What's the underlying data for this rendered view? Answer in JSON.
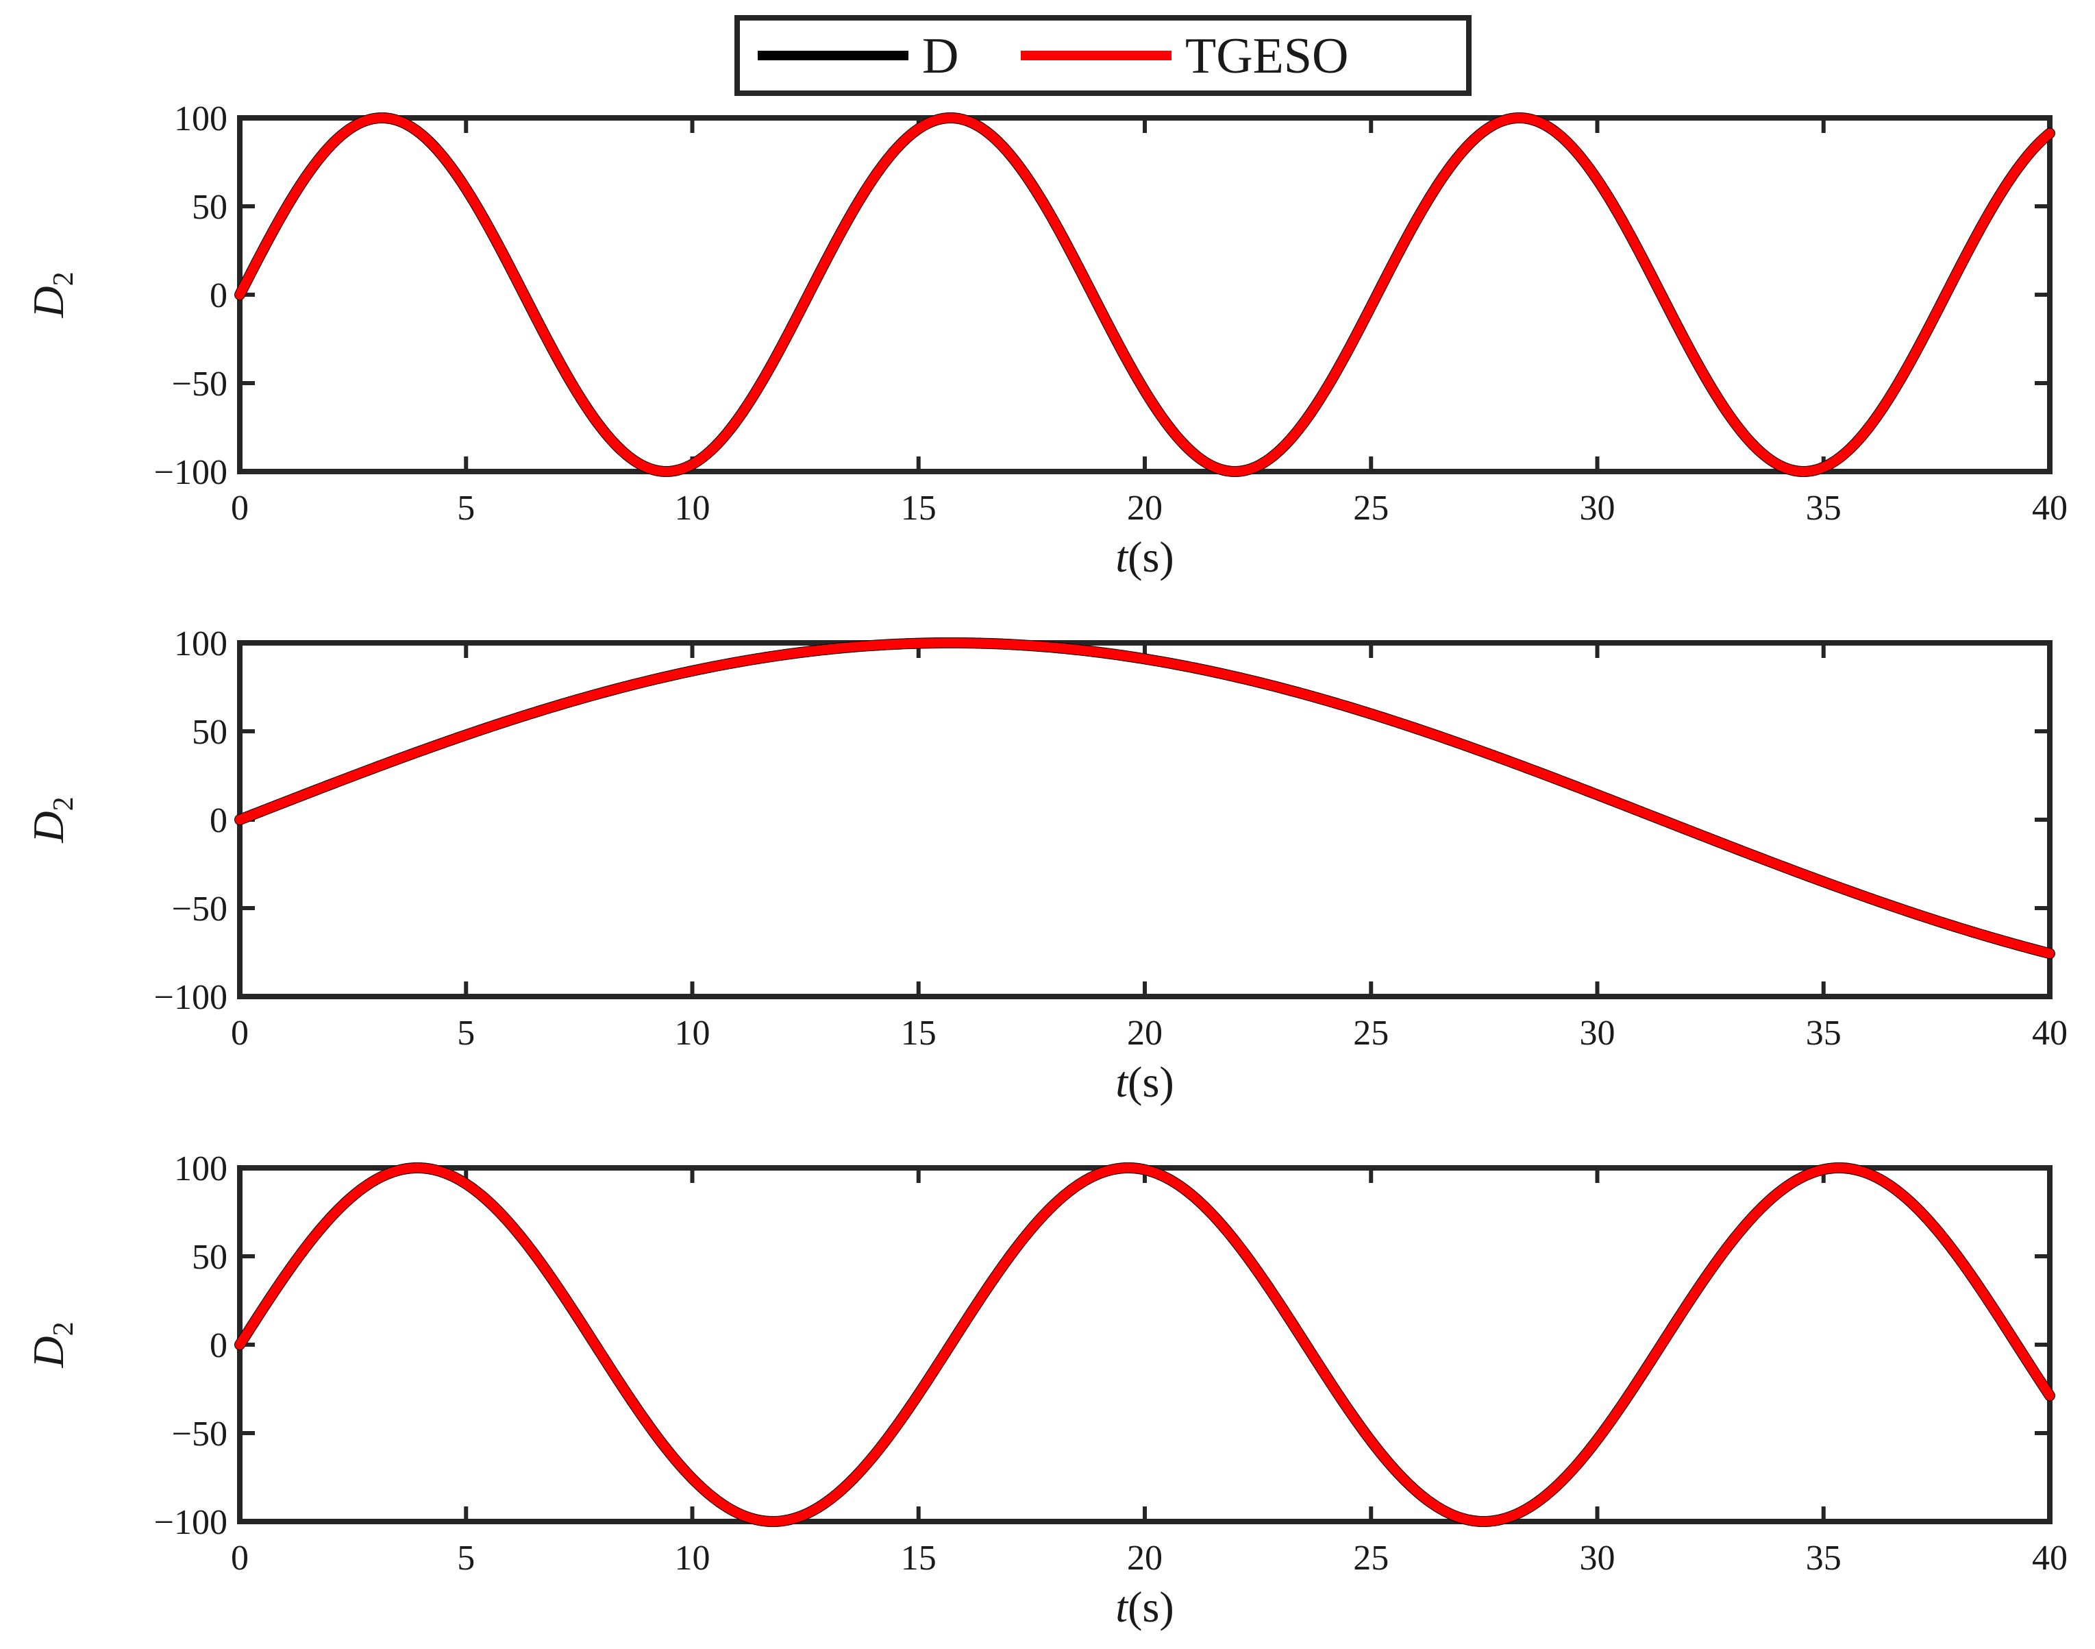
{
  "legend": {
    "entries": [
      {
        "label": "D",
        "color": "#000000"
      },
      {
        "label": "TGESO",
        "color": "#ff0000"
      }
    ]
  },
  "chart_data": [
    {
      "type": "line",
      "xlabel_var": "t",
      "xlabel_unit": "(s)",
      "ylabel_var": "D",
      "ylabel_sub": "2",
      "xlim": [
        0,
        40
      ],
      "ylim": [
        -100,
        100
      ],
      "xticks": [
        "0",
        "5",
        "10",
        "15",
        "20",
        "25",
        "30",
        "35",
        "40"
      ],
      "yticks": [
        "100",
        "50",
        "0",
        "−50",
        "−100"
      ],
      "series": [
        {
          "name": "D",
          "color": "#000000",
          "function": "100*sin(0.5*t)"
        },
        {
          "name": "TGESO",
          "color": "#ff0000",
          "function": "100*sin(0.5*t)"
        }
      ]
    },
    {
      "type": "line",
      "xlabel_var": "t",
      "xlabel_unit": "(s)",
      "ylabel_var": "D",
      "ylabel_sub": "2",
      "xlim": [
        0,
        40
      ],
      "ylim": [
        -100,
        100
      ],
      "xticks": [
        "0",
        "5",
        "10",
        "15",
        "20",
        "25",
        "30",
        "35",
        "40"
      ],
      "yticks": [
        "100",
        "50",
        "0",
        "−50",
        "−100"
      ],
      "series": [
        {
          "name": "D",
          "color": "#000000",
          "function": "100*sin(0.1*t)"
        },
        {
          "name": "TGESO",
          "color": "#ff0000",
          "function": "100*sin(0.1*t)"
        }
      ]
    },
    {
      "type": "line",
      "xlabel_var": "t",
      "xlabel_unit": "(s)",
      "ylabel_var": "D",
      "ylabel_sub": "2",
      "xlim": [
        0,
        40
      ],
      "ylim": [
        -100,
        100
      ],
      "xticks": [
        "0",
        "5",
        "10",
        "15",
        "20",
        "25",
        "30",
        "35",
        "40"
      ],
      "yticks": [
        "100",
        "50",
        "0",
        "−50",
        "−100"
      ],
      "series": [
        {
          "name": "D",
          "color": "#000000",
          "function": "100*sin(0.4*t)"
        },
        {
          "name": "TGESO",
          "color": "#ff0000",
          "function": "100*sin(0.4*t)"
        }
      ]
    }
  ]
}
